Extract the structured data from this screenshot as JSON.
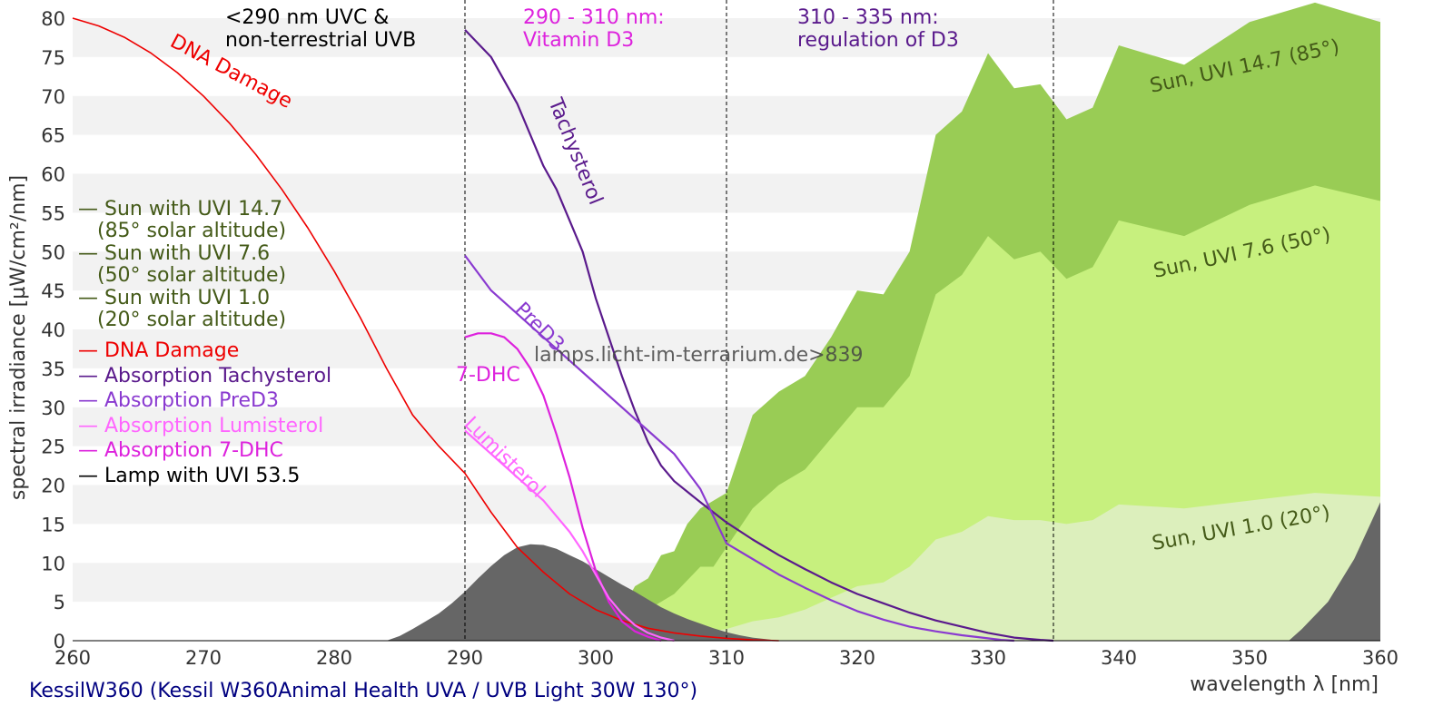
{
  "chart_data": {
    "type": "area",
    "title": "",
    "xlabel": "wavelength λ [nm]",
    "ylabel": "spectral irradiance [µW/cm²/nm]",
    "xlim": [
      260,
      360
    ],
    "ylim": [
      0,
      80
    ],
    "x_ticks": [
      260,
      270,
      280,
      290,
      300,
      310,
      320,
      330,
      340,
      350,
      360
    ],
    "y_ticks": [
      0,
      5,
      10,
      15,
      20,
      25,
      30,
      35,
      40,
      45,
      50,
      55,
      60,
      65,
      70,
      75,
      80
    ],
    "grid": "horizontal bands",
    "caption": "KessilW360 (Kessil W360Animal Health UVA / UVB Light 30W 130°)",
    "watermark": "lamps.licht-im-terrarium.de>839",
    "dividers": [
      290,
      310,
      335
    ],
    "region_labels": [
      {
        "lines": [
          "<290 nm UVC &",
          "non-terrestrial UVB"
        ],
        "color": "#000000"
      },
      {
        "lines": [
          "290 - 310 nm:",
          "Vitamin D3"
        ],
        "color": "#dd22dd"
      },
      {
        "lines": [
          "310 - 335 nm:",
          "regulation of D3"
        ],
        "color": "#5a1a8c"
      }
    ],
    "legend_items": [
      {
        "lines": [
          "— Sun with UVI 14.7",
          "   (85° solar altitude)"
        ],
        "color": "#445a18"
      },
      {
        "lines": [
          "— Sun with UVI 7.6",
          "   (50° solar altitude)"
        ],
        "color": "#445a18"
      },
      {
        "lines": [
          "— Sun with UVI 1.0",
          "   (20° solar altitude)"
        ],
        "color": "#445a18"
      },
      {
        "lines": [
          "— DNA Damage"
        ],
        "color": "#ee0000"
      },
      {
        "lines": [
          "— Absorption Tachysterol"
        ],
        "color": "#5a1a8c"
      },
      {
        "lines": [
          "— Absorption PreD3"
        ],
        "color": "#8a3ad0"
      },
      {
        "lines": [
          "— Absorption Lumisterol"
        ],
        "color": "#ff66ff"
      },
      {
        "lines": [
          "— Absorption 7-DHC"
        ],
        "color": "#dd22dd"
      },
      {
        "lines": [
          "— Lamp with UVI 53.5"
        ],
        "color": "#000000"
      }
    ],
    "series_labels": {
      "sun_high": "Sun, UVI 14.7 (85°)",
      "sun_mid": "Sun, UVI 7.6 (50°)",
      "sun_low": "Sun, UVI 1.0 (20°)",
      "dna": "DNA Damage",
      "tachysterol": "Tachysterol",
      "pred3": "PreD3",
      "dhc": "7-DHC",
      "lumisterol": "Lumisterol"
    },
    "series": [
      {
        "name": "Sun with UVI 14.7",
        "kind": "area",
        "color": "#99cc55",
        "points": [
          [
            296,
            0
          ],
          [
            298,
            0.5
          ],
          [
            300,
            1.5
          ],
          [
            302,
            4
          ],
          [
            303,
            7
          ],
          [
            304,
            8
          ],
          [
            305,
            11
          ],
          [
            306,
            11.5
          ],
          [
            307,
            15
          ],
          [
            308,
            17
          ],
          [
            310,
            19
          ],
          [
            311,
            24
          ],
          [
            312,
            29
          ],
          [
            314,
            32
          ],
          [
            316,
            34
          ],
          [
            318,
            39
          ],
          [
            320,
            45
          ],
          [
            322,
            44.5
          ],
          [
            324,
            50
          ],
          [
            326,
            65
          ],
          [
            328,
            68
          ],
          [
            330,
            75.5
          ],
          [
            332,
            71
          ],
          [
            334,
            71.5
          ],
          [
            336,
            67
          ],
          [
            338,
            68.5
          ],
          [
            340,
            76.5
          ],
          [
            345,
            74
          ],
          [
            350,
            79.5
          ],
          [
            355,
            82
          ],
          [
            360,
            79.5
          ],
          [
            360,
            0
          ]
        ]
      },
      {
        "name": "Sun with UVI 7.6",
        "kind": "area",
        "color": "#c7f07e",
        "points": [
          [
            296,
            0
          ],
          [
            298,
            0.3
          ],
          [
            300,
            0.8
          ],
          [
            302,
            2
          ],
          [
            304,
            4
          ],
          [
            306,
            6
          ],
          [
            308,
            9.5
          ],
          [
            309,
            9.5
          ],
          [
            310,
            12
          ],
          [
            312,
            17
          ],
          [
            314,
            20
          ],
          [
            316,
            22
          ],
          [
            318,
            26
          ],
          [
            320,
            30
          ],
          [
            322,
            30
          ],
          [
            324,
            34
          ],
          [
            326,
            44.5
          ],
          [
            328,
            47
          ],
          [
            330,
            52
          ],
          [
            332,
            49
          ],
          [
            334,
            50
          ],
          [
            336,
            46.5
          ],
          [
            338,
            48
          ],
          [
            340,
            54
          ],
          [
            345,
            52
          ],
          [
            350,
            56
          ],
          [
            355,
            58.5
          ],
          [
            360,
            56.5
          ],
          [
            360,
            0
          ]
        ]
      },
      {
        "name": "Sun with UVI 1.0",
        "kind": "area",
        "color": "#dcefbc",
        "points": [
          [
            300,
            0
          ],
          [
            304,
            0.4
          ],
          [
            308,
            1
          ],
          [
            310,
            1.5
          ],
          [
            312,
            2.5
          ],
          [
            314,
            3
          ],
          [
            316,
            4
          ],
          [
            318,
            5.5
          ],
          [
            320,
            7
          ],
          [
            322,
            7.5
          ],
          [
            324,
            9.5
          ],
          [
            326,
            13
          ],
          [
            328,
            14
          ],
          [
            330,
            16
          ],
          [
            332,
            15.5
          ],
          [
            334,
            15.5
          ],
          [
            336,
            15
          ],
          [
            338,
            15.5
          ],
          [
            340,
            17.5
          ],
          [
            345,
            17
          ],
          [
            350,
            18
          ],
          [
            355,
            19
          ],
          [
            360,
            18.5
          ],
          [
            360,
            0
          ]
        ]
      },
      {
        "name": "Lamp with UVI 53.5",
        "kind": "area",
        "color": "#666666",
        "points": [
          [
            284,
            0
          ],
          [
            285,
            0.6
          ],
          [
            286,
            1.5
          ],
          [
            287,
            2.5
          ],
          [
            288,
            3.5
          ],
          [
            289,
            4.8
          ],
          [
            290,
            6.3
          ],
          [
            291,
            8
          ],
          [
            292,
            9.6
          ],
          [
            293,
            11
          ],
          [
            294,
            12
          ],
          [
            295,
            12.4
          ],
          [
            296,
            12.3
          ],
          [
            297,
            11.8
          ],
          [
            298,
            11
          ],
          [
            299,
            10.2
          ],
          [
            300,
            9.2
          ],
          [
            301,
            8.2
          ],
          [
            302,
            7.2
          ],
          [
            303,
            6.3
          ],
          [
            304,
            5.3
          ],
          [
            305,
            4.3
          ],
          [
            306,
            3.5
          ],
          [
            307,
            2.8
          ],
          [
            308,
            2.2
          ],
          [
            309,
            1.6
          ],
          [
            310,
            1.1
          ],
          [
            311,
            0.7
          ],
          [
            312,
            0.4
          ],
          [
            313,
            0.2
          ],
          [
            314,
            0
          ],
          [
            353,
            0
          ],
          [
            354,
            1.5
          ],
          [
            356,
            5
          ],
          [
            358,
            10.5
          ],
          [
            360,
            17.8
          ],
          [
            360,
            0
          ]
        ]
      },
      {
        "name": "DNA Damage",
        "kind": "line",
        "color": "#ee0000",
        "points": [
          [
            260,
            80
          ],
          [
            262,
            79
          ],
          [
            264,
            77.5
          ],
          [
            266,
            75.5
          ],
          [
            268,
            73
          ],
          [
            270,
            70
          ],
          [
            272,
            66.5
          ],
          [
            274,
            62.5
          ],
          [
            276,
            58
          ],
          [
            278,
            53
          ],
          [
            280,
            47.5
          ],
          [
            282,
            41.5
          ],
          [
            284,
            35
          ],
          [
            286,
            29
          ],
          [
            288,
            25
          ],
          [
            290,
            21.5
          ],
          [
            292,
            16.5
          ],
          [
            294,
            12
          ],
          [
            296,
            8.8
          ],
          [
            298,
            6
          ],
          [
            300,
            4
          ],
          [
            302,
            2.6
          ],
          [
            304,
            1.6
          ],
          [
            306,
            1
          ],
          [
            308,
            0.6
          ],
          [
            310,
            0.3
          ],
          [
            312,
            0.1
          ],
          [
            314,
            0
          ]
        ]
      },
      {
        "name": "Absorption Tachysterol",
        "kind": "line",
        "color": "#5a1a8c",
        "points": [
          [
            290,
            78.5
          ],
          [
            292,
            75
          ],
          [
            294,
            69
          ],
          [
            296,
            61
          ],
          [
            297,
            58
          ],
          [
            298,
            54
          ],
          [
            299,
            50
          ],
          [
            300,
            44
          ],
          [
            301,
            39
          ],
          [
            302,
            34
          ],
          [
            303,
            29.5
          ],
          [
            304,
            25.5
          ],
          [
            305,
            22.5
          ],
          [
            306,
            20.5
          ],
          [
            308,
            17.8
          ],
          [
            310,
            15.2
          ],
          [
            312,
            13
          ],
          [
            314,
            11
          ],
          [
            316,
            9.2
          ],
          [
            318,
            7.5
          ],
          [
            320,
            6
          ],
          [
            322,
            4.8
          ],
          [
            324,
            3.6
          ],
          [
            326,
            2.6
          ],
          [
            328,
            1.8
          ],
          [
            330,
            1
          ],
          [
            332,
            0.4
          ],
          [
            334,
            0.1
          ],
          [
            335,
            0
          ]
        ]
      },
      {
        "name": "Absorption PreD3",
        "kind": "line",
        "color": "#8a3ad0",
        "points": [
          [
            290,
            49.5
          ],
          [
            292,
            45
          ],
          [
            294,
            42
          ],
          [
            296,
            39
          ],
          [
            298,
            36
          ],
          [
            300,
            33
          ],
          [
            302,
            30
          ],
          [
            304,
            27
          ],
          [
            306,
            24
          ],
          [
            308,
            19.5
          ],
          [
            310,
            12.5
          ],
          [
            312,
            10.5
          ],
          [
            314,
            8.5
          ],
          [
            316,
            6.8
          ],
          [
            318,
            5.2
          ],
          [
            320,
            3.8
          ],
          [
            322,
            2.7
          ],
          [
            324,
            1.8
          ],
          [
            326,
            1.2
          ],
          [
            328,
            0.7
          ],
          [
            330,
            0.3
          ],
          [
            331,
            0.1
          ],
          [
            332,
            0
          ]
        ]
      },
      {
        "name": "Absorption 7-DHC",
        "kind": "line",
        "color": "#dd22dd",
        "points": [
          [
            290,
            39
          ],
          [
            291,
            39.5
          ],
          [
            292,
            39.5
          ],
          [
            293,
            39
          ],
          [
            294,
            37.5
          ],
          [
            295,
            35
          ],
          [
            296,
            31.5
          ],
          [
            297,
            26.5
          ],
          [
            298,
            21
          ],
          [
            299,
            14.5
          ],
          [
            300,
            9
          ],
          [
            301,
            5
          ],
          [
            302,
            2.5
          ],
          [
            303,
            1.2
          ],
          [
            304,
            0.5
          ],
          [
            305,
            0
          ]
        ]
      },
      {
        "name": "Absorption Lumisterol",
        "kind": "line",
        "color": "#ff66ff",
        "points": [
          [
            290,
            27
          ],
          [
            292,
            24
          ],
          [
            294,
            21
          ],
          [
            296,
            18
          ],
          [
            297,
            16
          ],
          [
            298,
            14
          ],
          [
            299,
            11.5
          ],
          [
            300,
            8.5
          ],
          [
            301,
            5.5
          ],
          [
            302,
            3.5
          ],
          [
            303,
            2
          ],
          [
            304,
            1
          ],
          [
            305,
            0.4
          ],
          [
            306,
            0
          ]
        ]
      }
    ]
  }
}
